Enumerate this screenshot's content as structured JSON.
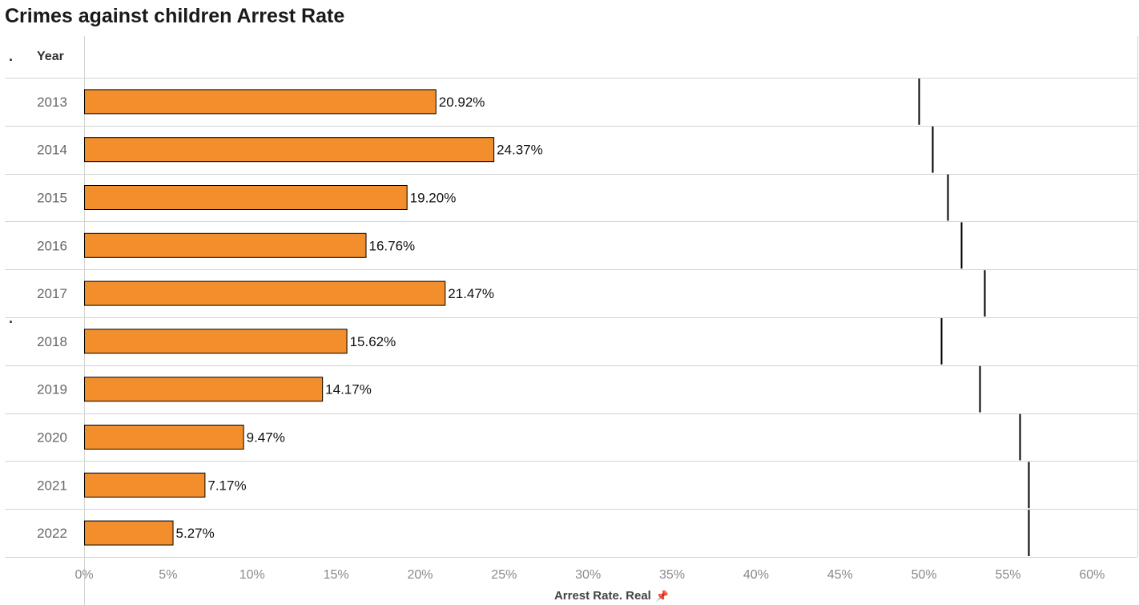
{
  "title": "Crimes against children Arrest Rate",
  "header": {
    "row_header": "Year"
  },
  "colors": {
    "bar_fill": "#F28E2B",
    "bar_stroke": "#000000",
    "reference_line": "#000000",
    "grid": "#d4d4d4",
    "tick_text": "#8a8a8a"
  },
  "icons": {
    "axis_pin": "pin-icon"
  },
  "chart_data": {
    "type": "bar",
    "orientation": "horizontal",
    "categories": [
      "2013",
      "2014",
      "2015",
      "2016",
      "2017",
      "2018",
      "2019",
      "2020",
      "2021",
      "2022"
    ],
    "series": [
      {
        "values": [
          20.92,
          24.37,
          19.2,
          16.76,
          21.47,
          15.62,
          14.17,
          9.47,
          7.17,
          5.27
        ]
      }
    ],
    "data_labels": [
      "20.92%",
      "24.37%",
      "19.20%",
      "16.76%",
      "21.47%",
      "15.62%",
      "14.17%",
      "9.47%",
      "7.17%",
      "5.27%"
    ],
    "reference_values": [
      49.7,
      50.5,
      51.4,
      52.2,
      53.6,
      51.0,
      53.3,
      55.7,
      56.2,
      56.2
    ],
    "xlabel": "Arrest Rate. Real",
    "ylabel": "Year",
    "xlim": [
      0,
      62.7
    ],
    "xticks": [
      0,
      5,
      10,
      15,
      20,
      25,
      30,
      35,
      40,
      45,
      50,
      55,
      60
    ],
    "xtick_labels": [
      "0%",
      "5%",
      "10%",
      "15%",
      "20%",
      "25%",
      "30%",
      "35%",
      "40%",
      "45%",
      "50%",
      "55%",
      "60%"
    ],
    "grid": true,
    "legend": "none"
  }
}
